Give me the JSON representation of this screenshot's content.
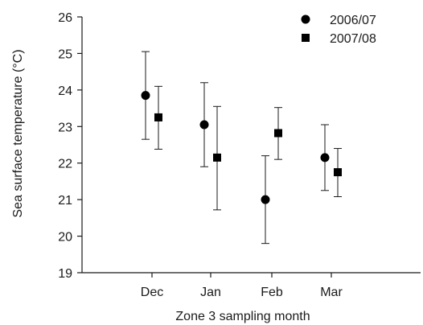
{
  "chart_data": {
    "type": "scatter",
    "title": "",
    "xlabel": "Zone 3 sampling month",
    "ylabel": "Sea surface temperature (°C)",
    "categories": [
      "Dec",
      "Jan",
      "Feb",
      "Mar"
    ],
    "ylim": [
      19,
      26
    ],
    "yticks": [
      "19",
      "20",
      "21",
      "22",
      "23",
      "24",
      "25",
      "26"
    ],
    "grid": false,
    "legend_position": "top-right",
    "series": [
      {
        "name": "2006/07",
        "marker": "circle",
        "values": [
          23.85,
          23.05,
          21.0,
          22.15
        ],
        "error_low": [
          22.65,
          21.9,
          19.8,
          21.25
        ],
        "error_high": [
          25.05,
          24.2,
          22.2,
          23.05
        ]
      },
      {
        "name": "2007/08",
        "marker": "square",
        "values": [
          23.25,
          22.15,
          22.82,
          21.75
        ],
        "error_low": [
          22.38,
          20.72,
          22.1,
          21.08
        ],
        "error_high": [
          24.1,
          23.55,
          23.52,
          22.4
        ]
      }
    ]
  }
}
